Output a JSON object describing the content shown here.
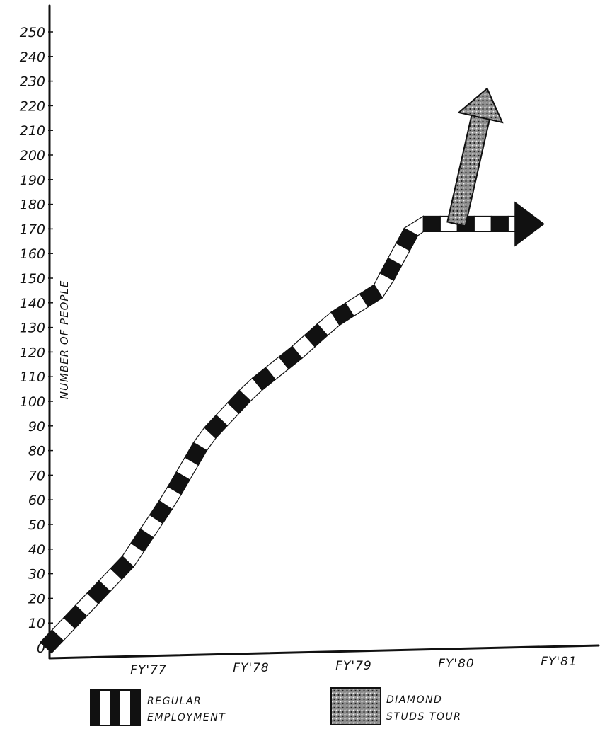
{
  "chart_data": {
    "type": "line",
    "ylabel": "NUMBER OF PEOPLE",
    "xlabel": "",
    "ylim": [
      0,
      250
    ],
    "yticks": [
      0,
      10,
      20,
      30,
      40,
      50,
      60,
      70,
      80,
      90,
      100,
      110,
      120,
      130,
      140,
      150,
      160,
      170,
      180,
      190,
      200,
      210,
      220,
      230,
      240,
      250
    ],
    "ytick_labels": [
      "0",
      "10",
      "20",
      "30",
      "40",
      "50",
      "60",
      "70",
      "80",
      "90",
      "100",
      "110",
      "120",
      "130",
      "140",
      "150",
      "160",
      "170",
      "180",
      "190",
      "200",
      "210",
      "220",
      "230",
      "240",
      "250"
    ],
    "categories": [
      "FY'77",
      "FY'78",
      "FY'79",
      "FY'80",
      "FY'81"
    ],
    "grid": false,
    "legend_position": "bottom",
    "series": [
      {
        "name": "REGULAR EMPLOYMENT",
        "pattern": "black-white-bands",
        "color": "#111111",
        "x": [
          -1.0,
          -0.2,
          0.2,
          0.55,
          1.0,
          1.45,
          1.8,
          2.25,
          2.6,
          3.0,
          3.4,
          3.85
        ],
        "y": [
          0,
          35,
          60,
          85,
          105,
          120,
          133,
          145,
          172,
          172,
          172,
          172
        ]
      },
      {
        "name": "DIAMOND STUDS TOUR",
        "pattern": "stipple",
        "color": "#555555",
        "x": [
          3.0,
          3.3
        ],
        "y": [
          172,
          227
        ]
      }
    ],
    "legend": [
      {
        "label_line1": "REGULAR",
        "label_line2": "EMPLOYMENT",
        "series": "REGULAR EMPLOYMENT"
      },
      {
        "label_line1": "DIAMOND",
        "label_line2": "STUDS TOUR",
        "series": "DIAMOND STUDS TOUR"
      }
    ]
  }
}
